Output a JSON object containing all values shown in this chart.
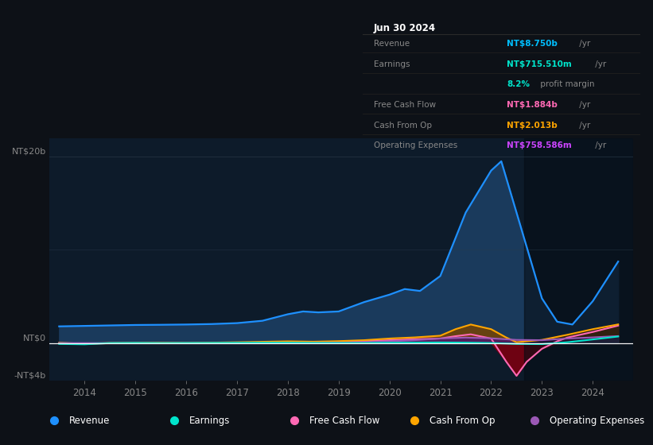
{
  "background_color": "#0d1117",
  "chart_bg_color": "#0d1b2a",
  "title": "Jun 30 2024",
  "ylim": [
    -4000000000,
    22000000000
  ],
  "xlim": [
    2013.3,
    2024.8
  ],
  "xlabel_years": [
    "2014",
    "2015",
    "2016",
    "2017",
    "2018",
    "2019",
    "2020",
    "2021",
    "2022",
    "2023",
    "2024"
  ],
  "xtick_vals": [
    2014,
    2015,
    2016,
    2017,
    2018,
    2019,
    2020,
    2021,
    2022,
    2023,
    2024
  ],
  "series": {
    "Revenue": {
      "color": "#1e90ff",
      "fill_color": "#1a3a5c",
      "x": [
        2013.5,
        2014.0,
        2014.5,
        2015.0,
        2015.5,
        2016.0,
        2016.5,
        2017.0,
        2017.5,
        2018.0,
        2018.3,
        2018.6,
        2019.0,
        2019.5,
        2020.0,
        2020.3,
        2020.6,
        2021.0,
        2021.5,
        2022.0,
        2022.2,
        2022.5,
        2023.0,
        2023.3,
        2023.6,
        2024.0,
        2024.5
      ],
      "y": [
        1800000000,
        1850000000,
        1900000000,
        1950000000,
        1970000000,
        2000000000,
        2050000000,
        2150000000,
        2400000000,
        3100000000,
        3400000000,
        3300000000,
        3400000000,
        4400000000,
        5200000000,
        5800000000,
        5600000000,
        7200000000,
        14000000000,
        18500000000,
        19500000000,
        14000000000,
        4800000000,
        2300000000,
        2000000000,
        4500000000,
        8750000000
      ]
    },
    "Earnings": {
      "color": "#00e5cc",
      "x": [
        2013.5,
        2014.0,
        2014.5,
        2015.0,
        2015.5,
        2016.0,
        2016.5,
        2017.0,
        2017.5,
        2018.0,
        2018.5,
        2019.0,
        2019.5,
        2020.0,
        2020.5,
        2021.0,
        2021.5,
        2022.0,
        2022.5,
        2023.0,
        2023.5,
        2024.0,
        2024.5
      ],
      "y": [
        -80000000,
        -120000000,
        10000000,
        30000000,
        10000000,
        20000000,
        30000000,
        40000000,
        50000000,
        50000000,
        30000000,
        20000000,
        20000000,
        50000000,
        60000000,
        80000000,
        60000000,
        20000000,
        -80000000,
        -100000000,
        100000000,
        400000000,
        715000000
      ]
    },
    "FreeCashFlow": {
      "color": "#ff69b4",
      "fill_pos_color": "#5a1030",
      "fill_neg_color": "#7a0010",
      "x": [
        2013.5,
        2014.0,
        2014.5,
        2015.0,
        2015.5,
        2016.0,
        2016.5,
        2017.0,
        2017.5,
        2018.0,
        2018.5,
        2019.0,
        2019.5,
        2020.0,
        2020.5,
        2021.0,
        2021.3,
        2021.6,
        2022.0,
        2022.3,
        2022.5,
        2022.7,
        2023.0,
        2023.3,
        2023.5,
        2024.0,
        2024.5
      ],
      "y": [
        10000000,
        -60000000,
        0,
        10000000,
        40000000,
        10000000,
        20000000,
        30000000,
        80000000,
        150000000,
        120000000,
        160000000,
        220000000,
        320000000,
        420000000,
        500000000,
        750000000,
        950000000,
        500000000,
        -2000000000,
        -3500000000,
        -2000000000,
        -600000000,
        200000000,
        600000000,
        1200000000,
        1884000000
      ]
    },
    "CashFromOp": {
      "color": "#ffa500",
      "fill_pos_color": "#7a4500",
      "fill_neg_color": "#5a0000",
      "x": [
        2013.5,
        2014.0,
        2014.5,
        2015.0,
        2015.5,
        2016.0,
        2016.5,
        2017.0,
        2017.5,
        2018.0,
        2018.5,
        2019.0,
        2019.5,
        2020.0,
        2020.5,
        2021.0,
        2021.3,
        2021.6,
        2022.0,
        2022.3,
        2022.5,
        2023.0,
        2023.5,
        2024.0,
        2024.5
      ],
      "y": [
        40000000,
        -60000000,
        20000000,
        40000000,
        50000000,
        30000000,
        60000000,
        100000000,
        150000000,
        200000000,
        160000000,
        220000000,
        320000000,
        500000000,
        620000000,
        800000000,
        1500000000,
        2000000000,
        1500000000,
        600000000,
        100000000,
        350000000,
        900000000,
        1500000000,
        2013000000
      ]
    },
    "OperatingExpenses": {
      "color": "#9b59b6",
      "fill_color": "#4a1a6b",
      "x": [
        2013.5,
        2014.0,
        2014.5,
        2015.0,
        2015.5,
        2016.0,
        2016.5,
        2017.0,
        2017.5,
        2018.0,
        2018.5,
        2019.0,
        2019.5,
        2020.0,
        2020.5,
        2021.0,
        2021.5,
        2022.0,
        2022.5,
        2023.0,
        2023.5,
        2024.0,
        2024.5
      ],
      "y": [
        10000000,
        10000000,
        10000000,
        10000000,
        10000000,
        10000000,
        10000000,
        20000000,
        20000000,
        30000000,
        30000000,
        60000000,
        100000000,
        200000000,
        320000000,
        500000000,
        600000000,
        520000000,
        350000000,
        320000000,
        500000000,
        620000000,
        758000000
      ]
    }
  },
  "info_box": {
    "title": "Jun 30 2024",
    "rows": [
      {
        "label": "Revenue",
        "value": "NT$8.750b",
        "suffix": " /yr",
        "color": "#00bfff"
      },
      {
        "label": "Earnings",
        "value": "NT$715.510m",
        "suffix": " /yr",
        "color": "#00e5cc"
      },
      {
        "label": "",
        "value": "8.2%",
        "suffix": " profit margin",
        "color": "#00e5cc"
      },
      {
        "label": "Free Cash Flow",
        "value": "NT$1.884b",
        "suffix": " /yr",
        "color": "#ff69b4"
      },
      {
        "label": "Cash From Op",
        "value": "NT$2.013b",
        "suffix": " /yr",
        "color": "#ffa500"
      },
      {
        "label": "Operating Expenses",
        "value": "NT$758.586m",
        "suffix": " /yr",
        "color": "#cc44ff"
      }
    ]
  },
  "legend": [
    {
      "label": "Revenue",
      "color": "#1e90ff"
    },
    {
      "label": "Earnings",
      "color": "#00e5cc"
    },
    {
      "label": "Free Cash Flow",
      "color": "#ff69b4"
    },
    {
      "label": "Cash From Op",
      "color": "#ffa500"
    },
    {
      "label": "Operating Expenses",
      "color": "#9b59b6"
    }
  ],
  "grid_color": "#2a3a4a",
  "text_color": "#888888",
  "dark_overlay_x": 2022.65
}
